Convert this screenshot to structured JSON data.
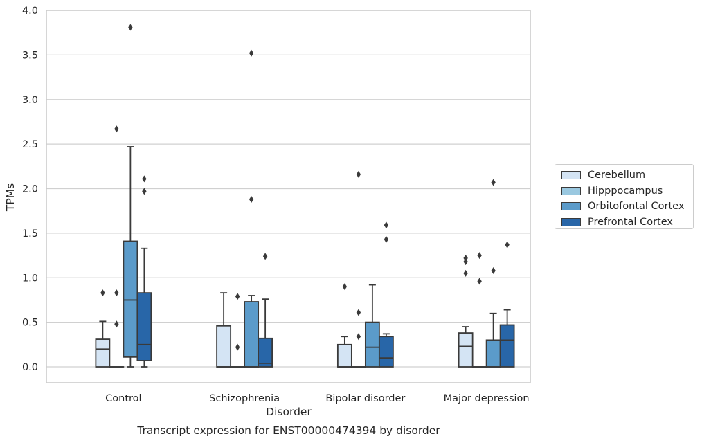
{
  "chart_data": {
    "type": "box",
    "title": "Transcript expression for ENST00000474394 by disorder",
    "xlabel": "Disorder",
    "ylabel": "TPMs",
    "categories": [
      "Control",
      "Schizophrenia",
      "Bipolar disorder",
      "Major depression"
    ],
    "ylim": [
      -0.18,
      4.0
    ],
    "yticks": [
      "0.0",
      "0.5",
      "1.0",
      "1.5",
      "2.0",
      "2.5",
      "3.0",
      "3.5",
      "4.0"
    ],
    "grid": "horizontal",
    "legend_position": "right",
    "series": [
      {
        "name": "Cerebellum",
        "color": "#d4e4f4",
        "boxes": [
          {
            "whislo": 0.0,
            "q1": 0.0,
            "med": 0.2,
            "q3": 0.31,
            "whishi": 0.51,
            "fliers": [
              0.83
            ]
          },
          {
            "whislo": 0.0,
            "q1": 0.0,
            "med": 0.0,
            "q3": 0.46,
            "whishi": 0.83,
            "fliers": []
          },
          {
            "whislo": 0.0,
            "q1": 0.0,
            "med": 0.0,
            "q3": 0.25,
            "whishi": 0.34,
            "fliers": [
              0.9
            ]
          },
          {
            "whislo": 0.0,
            "q1": 0.0,
            "med": 0.23,
            "q3": 0.38,
            "whishi": 0.45,
            "fliers": [
              1.05,
              1.18,
              1.22
            ]
          }
        ]
      },
      {
        "name": "Hipppocampus",
        "color": "#9ac8e0",
        "boxes": [
          {
            "whislo": 0.0,
            "q1": 0.0,
            "med": 0.0,
            "q3": 0.0,
            "whishi": 0.0,
            "fliers": [
              0.48,
              0.83,
              2.67
            ]
          },
          {
            "whislo": 0.0,
            "q1": 0.0,
            "med": 0.0,
            "q3": 0.0,
            "whishi": 0.0,
            "fliers": [
              0.22,
              0.79
            ]
          },
          {
            "whislo": 0.0,
            "q1": 0.0,
            "med": 0.0,
            "q3": 0.0,
            "whishi": 0.0,
            "fliers": [
              0.34,
              0.61,
              2.16
            ]
          },
          {
            "whislo": 0.0,
            "q1": 0.0,
            "med": 0.0,
            "q3": 0.0,
            "whishi": 0.0,
            "fliers": [
              0.96,
              1.25
            ]
          }
        ]
      },
      {
        "name": "Orbitofontal Cortex",
        "color": "#5b9bca",
        "boxes": [
          {
            "whislo": 0.0,
            "q1": 0.11,
            "med": 0.75,
            "q3": 1.41,
            "whishi": 2.47,
            "fliers": [
              3.81
            ]
          },
          {
            "whislo": 0.0,
            "q1": 0.0,
            "med": 0.0,
            "q3": 0.73,
            "whishi": 0.8,
            "fliers": [
              1.88,
              3.52
            ]
          },
          {
            "whislo": 0.0,
            "q1": 0.0,
            "med": 0.22,
            "q3": 0.5,
            "whishi": 0.92,
            "fliers": []
          },
          {
            "whislo": 0.0,
            "q1": 0.0,
            "med": 0.0,
            "q3": 0.3,
            "whishi": 0.6,
            "fliers": [
              1.08,
              2.07
            ]
          }
        ]
      },
      {
        "name": "Prefrontal Cortex",
        "color": "#2866a8",
        "boxes": [
          {
            "whislo": 0.0,
            "q1": 0.07,
            "med": 0.25,
            "q3": 0.83,
            "whishi": 1.33,
            "fliers": [
              1.97,
              2.11
            ]
          },
          {
            "whislo": 0.0,
            "q1": 0.0,
            "med": 0.04,
            "q3": 0.32,
            "whishi": 0.76,
            "fliers": [
              1.24
            ]
          },
          {
            "whislo": 0.0,
            "q1": 0.0,
            "med": 0.1,
            "q3": 0.34,
            "whishi": 0.37,
            "fliers": [
              1.43,
              1.59
            ]
          },
          {
            "whislo": 0.0,
            "q1": 0.0,
            "med": 0.3,
            "q3": 0.47,
            "whishi": 0.64,
            "fliers": [
              1.37
            ]
          }
        ]
      }
    ]
  }
}
